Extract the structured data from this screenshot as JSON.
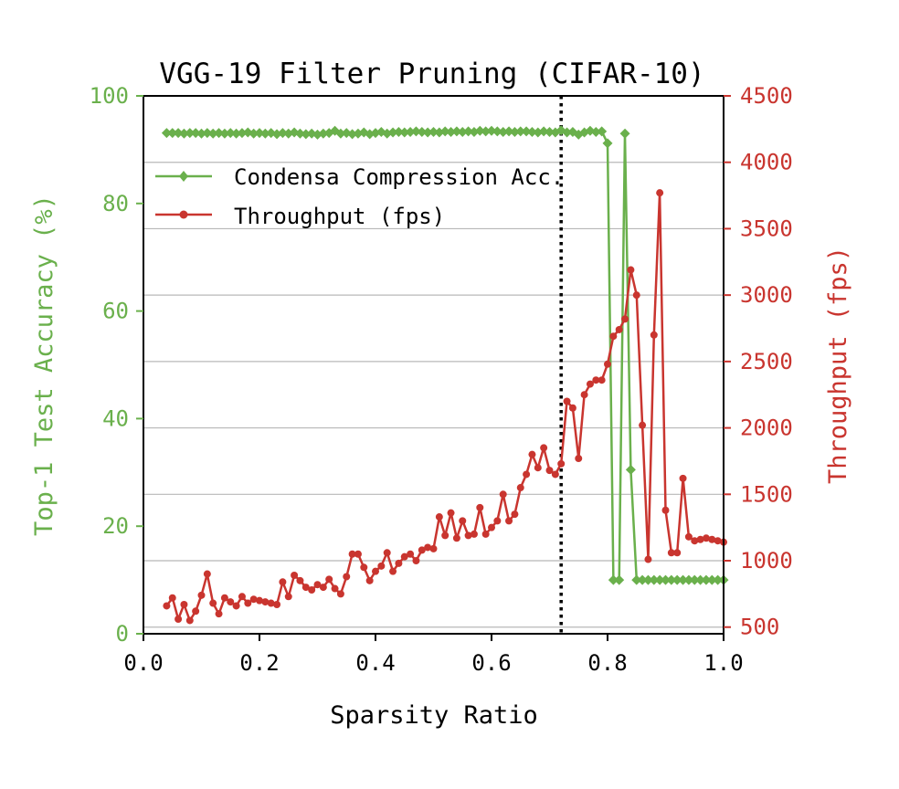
{
  "colors": {
    "accuracy": "#6ab04c",
    "throughput": "#c9352f",
    "axis": "#000000",
    "grid": "#b8b8b8",
    "marker_line": "#000000"
  },
  "chart_data": {
    "type": "line",
    "title": "VGG-19 Filter Pruning (CIFAR-10)",
    "xlabel": "Sparsity Ratio",
    "ylabel_left": "Top-1 Test Accuracy (%)",
    "ylabel_right": "Throughput (fps)",
    "xlim": [
      0.0,
      1.0
    ],
    "ylim_left": [
      0,
      100
    ],
    "ylim_right": [
      450,
      4500
    ],
    "x_ticks": [
      "0.0",
      "0.2",
      "0.4",
      "0.6",
      "0.8",
      "1.0"
    ],
    "y_ticks_left": [
      "0",
      "20",
      "40",
      "60",
      "80",
      "100"
    ],
    "y_ticks_right": [
      "500",
      "1000",
      "1500",
      "2000",
      "2500",
      "3000",
      "3500",
      "4000",
      "4500"
    ],
    "grid": "horizontal (right axis)",
    "legend_placement": "upper-left",
    "vertical_line_x": 0.72,
    "series": [
      {
        "name": "Condensa Compression Acc.",
        "axis": "left",
        "marker": "diamond",
        "x": [
          0.04,
          0.05,
          0.06,
          0.07,
          0.08,
          0.09,
          0.1,
          0.11,
          0.12,
          0.13,
          0.14,
          0.15,
          0.16,
          0.17,
          0.18,
          0.19,
          0.2,
          0.21,
          0.22,
          0.23,
          0.24,
          0.25,
          0.26,
          0.27,
          0.28,
          0.29,
          0.3,
          0.31,
          0.32,
          0.33,
          0.34,
          0.35,
          0.36,
          0.37,
          0.38,
          0.39,
          0.4,
          0.41,
          0.42,
          0.43,
          0.44,
          0.45,
          0.46,
          0.47,
          0.48,
          0.49,
          0.5,
          0.51,
          0.52,
          0.53,
          0.54,
          0.55,
          0.56,
          0.57,
          0.58,
          0.59,
          0.6,
          0.61,
          0.62,
          0.63,
          0.64,
          0.65,
          0.66,
          0.67,
          0.68,
          0.69,
          0.7,
          0.71,
          0.72,
          0.73,
          0.74,
          0.75,
          0.76,
          0.77,
          0.78,
          0.79,
          0.8,
          0.81,
          0.82,
          0.83,
          0.84,
          0.85,
          0.86,
          0.87,
          0.88,
          0.89,
          0.9,
          0.91,
          0.92,
          0.93,
          0.94,
          0.95,
          0.96,
          0.97,
          0.98,
          0.99,
          1.0
        ],
        "y": [
          93.1,
          93.1,
          93.1,
          93.0,
          93.1,
          93.1,
          93.0,
          93.1,
          93.0,
          93.1,
          93.0,
          93.1,
          93.0,
          93.1,
          93.2,
          93.0,
          93.1,
          93.0,
          93.1,
          92.9,
          93.1,
          93.0,
          93.2,
          93.0,
          92.9,
          93.0,
          92.8,
          93.0,
          93.1,
          93.5,
          93.0,
          93.1,
          92.9,
          93.0,
          93.2,
          92.9,
          93.1,
          93.3,
          93.0,
          93.2,
          93.3,
          93.2,
          93.3,
          93.4,
          93.3,
          93.2,
          93.3,
          93.2,
          93.4,
          93.3,
          93.4,
          93.3,
          93.4,
          93.3,
          93.5,
          93.4,
          93.5,
          93.4,
          93.3,
          93.4,
          93.3,
          93.4,
          93.4,
          93.3,
          93.2,
          93.4,
          93.3,
          93.2,
          93.6,
          93.2,
          93.3,
          92.8,
          93.2,
          93.5,
          93.3,
          93.4,
          91.2,
          10.0,
          10.0,
          93.0,
          30.5,
          10.0,
          10.0,
          10.0,
          10.0,
          10.0,
          10.0,
          10.0,
          10.0,
          10.0,
          10.0,
          10.0,
          10.0,
          10.0,
          10.0,
          10.0,
          10.0
        ]
      },
      {
        "name": "Throughput (fps)",
        "axis": "right",
        "marker": "circle",
        "x": [
          0.04,
          0.05,
          0.06,
          0.07,
          0.08,
          0.09,
          0.1,
          0.11,
          0.12,
          0.13,
          0.14,
          0.15,
          0.16,
          0.17,
          0.18,
          0.19,
          0.2,
          0.21,
          0.22,
          0.23,
          0.24,
          0.25,
          0.26,
          0.27,
          0.28,
          0.29,
          0.3,
          0.31,
          0.32,
          0.33,
          0.34,
          0.35,
          0.36,
          0.37,
          0.38,
          0.39,
          0.4,
          0.41,
          0.42,
          0.43,
          0.44,
          0.45,
          0.46,
          0.47,
          0.48,
          0.49,
          0.5,
          0.51,
          0.52,
          0.53,
          0.54,
          0.55,
          0.56,
          0.57,
          0.58,
          0.59,
          0.6,
          0.61,
          0.62,
          0.63,
          0.64,
          0.65,
          0.66,
          0.67,
          0.68,
          0.69,
          0.7,
          0.71,
          0.72,
          0.73,
          0.74,
          0.75,
          0.76,
          0.77,
          0.78,
          0.79,
          0.8,
          0.81,
          0.82,
          0.83,
          0.84,
          0.85,
          0.86,
          0.87,
          0.88,
          0.89,
          0.9,
          0.91,
          0.92,
          0.93,
          0.94,
          0.95,
          0.96,
          0.97,
          0.98,
          0.99,
          1.0
        ],
        "y": [
          660,
          720,
          560,
          670,
          550,
          620,
          740,
          900,
          680,
          600,
          720,
          690,
          660,
          730,
          680,
          710,
          700,
          690,
          680,
          670,
          840,
          730,
          890,
          850,
          800,
          780,
          820,
          800,
          860,
          790,
          750,
          880,
          1050,
          1050,
          950,
          850,
          920,
          960,
          1060,
          920,
          980,
          1030,
          1050,
          1000,
          1080,
          1100,
          1090,
          1330,
          1190,
          1360,
          1170,
          1300,
          1190,
          1200,
          1400,
          1200,
          1250,
          1300,
          1500,
          1300,
          1350,
          1550,
          1650,
          1800,
          1700,
          1850,
          1680,
          1650,
          1730,
          2200,
          2150,
          1770,
          2250,
          2330,
          2360,
          2360,
          2480,
          2690,
          2740,
          2820,
          3190,
          3000,
          2020,
          1010,
          2700,
          3770,
          1380,
          1060,
          1060,
          1620,
          1180,
          1150,
          1160,
          1170,
          1160,
          1150,
          1140
        ]
      }
    ]
  }
}
